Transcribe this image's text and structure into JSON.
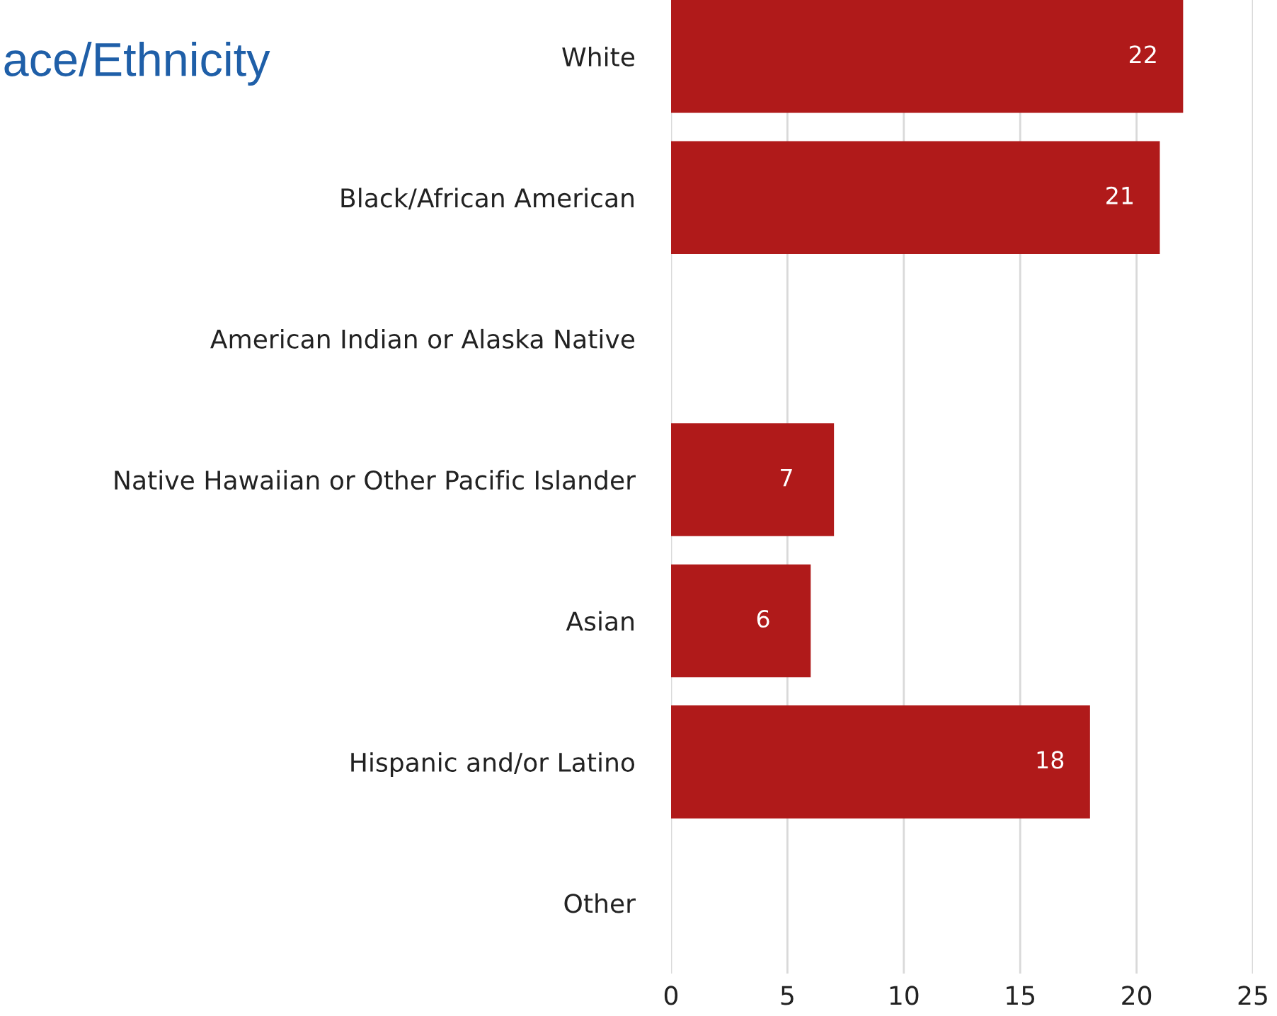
{
  "chart_data": {
    "type": "bar",
    "orientation": "horizontal",
    "title": "ace/Ethnicity",
    "categories": [
      "White",
      "Black/African American",
      "American Indian or Alaska Native",
      "Native Hawaiian or Other Pacific Islander",
      "Asian",
      "Hispanic and/or Latino",
      "Other"
    ],
    "values": [
      22,
      21,
      null,
      7,
      6,
      18,
      null
    ],
    "color": "#b01a1a",
    "xlim": [
      0,
      25
    ],
    "xticks": [
      0,
      5,
      10,
      15,
      20,
      25
    ],
    "grid": "x",
    "data_labels": true
  }
}
